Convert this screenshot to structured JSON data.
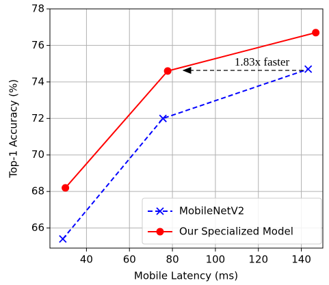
{
  "chart_data": {
    "type": "line",
    "xlabel": "Mobile Latency (ms)",
    "ylabel": "Top-1 Accuracy (%)",
    "xlim": [
      23,
      150
    ],
    "xticks": [
      40,
      60,
      80,
      100,
      120,
      140
    ],
    "ylim": [
      64.9,
      78
    ],
    "yticks": [
      66,
      68,
      70,
      72,
      74,
      76,
      78
    ],
    "grid": true,
    "legend": "lower right",
    "series": [
      {
        "name": "MobileNetV2",
        "color": "#0000ff",
        "linestyle": "dashed",
        "marker": "x",
        "x": [
          29,
          75.6,
          143.2
        ],
        "values": [
          65.4,
          72.0,
          74.7
        ]
      },
      {
        "name": "Our Specialized Model",
        "color": "#ff0000",
        "linestyle": "solid",
        "marker": "o",
        "x": [
          30.2,
          77.8,
          146.7
        ],
        "values": [
          68.2,
          74.6,
          76.7
        ]
      }
    ],
    "annotation": "1.83x faster"
  }
}
